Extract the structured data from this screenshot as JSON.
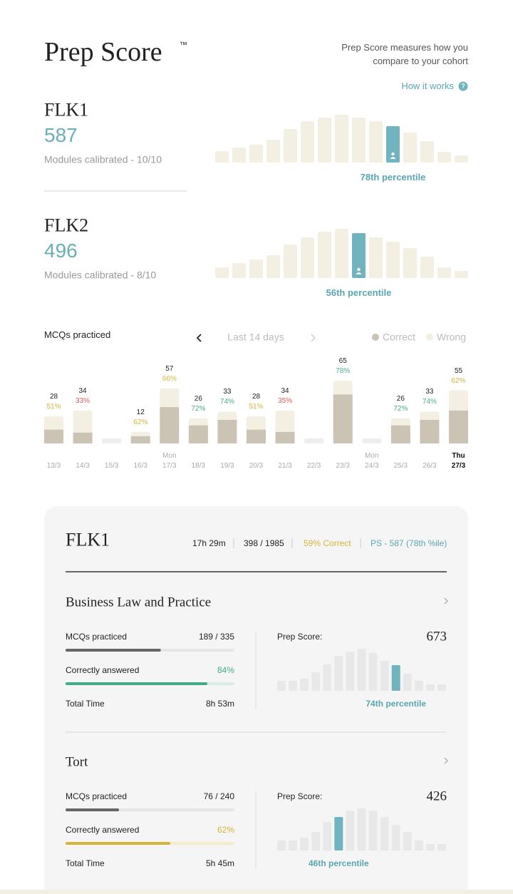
{
  "header": {
    "title": "Prep Score",
    "trademark": "™",
    "description_lines": [
      "Prep Score measures how you",
      "compare to your cohort"
    ],
    "help_link": "How it works",
    "help_icon": "?"
  },
  "exams": [
    {
      "name": "FLK1",
      "score": 587,
      "calibration": "Modules calibrated - 10/10",
      "percentile": "78th percentile",
      "distribution": [
        16,
        21,
        25,
        32,
        47,
        58,
        63,
        67,
        63,
        58,
        51,
        42,
        30,
        15,
        10
      ],
      "highlight_index": 10
    },
    {
      "name": "FLK2",
      "score": 496,
      "calibration": "Modules calibrated - 8/10",
      "percentile": "56th percentile",
      "distribution": [
        15,
        21,
        26,
        32,
        47,
        57,
        65,
        69,
        63,
        57,
        51,
        42,
        30,
        15,
        10
      ],
      "highlight_index": 8
    }
  ],
  "practice_chart": {
    "title": "MCQs practiced",
    "period": "Last 14 days",
    "legend": [
      {
        "name": "Correct",
        "color": "#cbc3b4"
      },
      {
        "name": "Wrong",
        "color": "#f4efe3"
      }
    ],
    "weekdays": [
      null,
      null,
      null,
      null,
      "Mon",
      null,
      null,
      null,
      null,
      null,
      null,
      "Mon",
      null,
      null,
      "Thu"
    ],
    "categories": [
      "13/3",
      "14/3",
      "15/3",
      "16/3",
      "17/3",
      "18/3",
      "19/3",
      "20/3",
      "21/3",
      "22/3",
      "23/3",
      "24/3",
      "25/3",
      "26/3",
      "27/3"
    ],
    "values": [
      28,
      34,
      null,
      12,
      57,
      26,
      33,
      28,
      34,
      null,
      65,
      null,
      26,
      33,
      55
    ],
    "correct_pct": [
      51,
      33,
      null,
      62,
      66,
      72,
      74,
      51,
      35,
      null,
      78,
      null,
      72,
      74,
      62
    ],
    "pct_labels": [
      "51%",
      "33%",
      null,
      "62%",
      "66%",
      "72%",
      "74%",
      "51%",
      "35%",
      null,
      "78%",
      null,
      "72%",
      "74%",
      "62%"
    ],
    "pct_colors": [
      "#d4b53a",
      "#e05a5a",
      null,
      "#d4b53a",
      "#d4b53a",
      "#4aab8f",
      "#4aab8f",
      "#d4b53a",
      "#e05a5a",
      null,
      "#4aab8f",
      null,
      "#4aab8f",
      "#4aab8f",
      "#d4b53a"
    ],
    "ylim": [
      0,
      65
    ],
    "highlight_index": 14
  },
  "detail_card": {
    "title": "FLK1",
    "stats": [
      "17h 29m",
      "398 / 1985",
      "59% Correct",
      "PS - 587 (78th %ile)"
    ],
    "stat_colors": [
      "#222222",
      "#222222",
      "#d4b53a",
      "#5aa6b0"
    ],
    "subjects": [
      {
        "name": "Business Law and Practice",
        "mcqs_caption": "MCQs practiced",
        "mcqs_label": "189 / 335",
        "mcqs_done": 189,
        "mcqs_total": 335,
        "correct_caption": "Correctly answered",
        "correct": 84,
        "correct_label": "84%",
        "correct_color": "#3fae86",
        "correct_track": "#d6ebe3",
        "time_caption": "Total Time",
        "time": "8h 53m",
        "score_caption": "Prep Score:",
        "score": 673,
        "percentile": "74th percentile",
        "distribution": [
          14,
          14,
          17,
          26,
          37,
          49,
          55,
          59,
          53,
          42,
          36,
          24,
          14,
          9,
          9
        ],
        "highlight_index": 10
      },
      {
        "name": "Tort",
        "mcqs_caption": "MCQs practiced",
        "mcqs_label": "76 / 240",
        "mcqs_done": 76,
        "mcqs_total": 240,
        "correct_caption": "Correctly answered",
        "correct": 62,
        "correct_label": "62%",
        "correct_color": "#d4b53a",
        "correct_track": "#f3ecc8",
        "time_caption": "Total Time",
        "time": "5h 45m",
        "score_caption": "Prep Score:",
        "score": 426,
        "percentile": "46th percentile",
        "distribution": [
          14,
          14,
          18,
          26,
          40,
          47,
          56,
          59,
          56,
          47,
          36,
          26,
          14,
          9,
          9
        ],
        "highlight_index": 5
      }
    ]
  }
}
